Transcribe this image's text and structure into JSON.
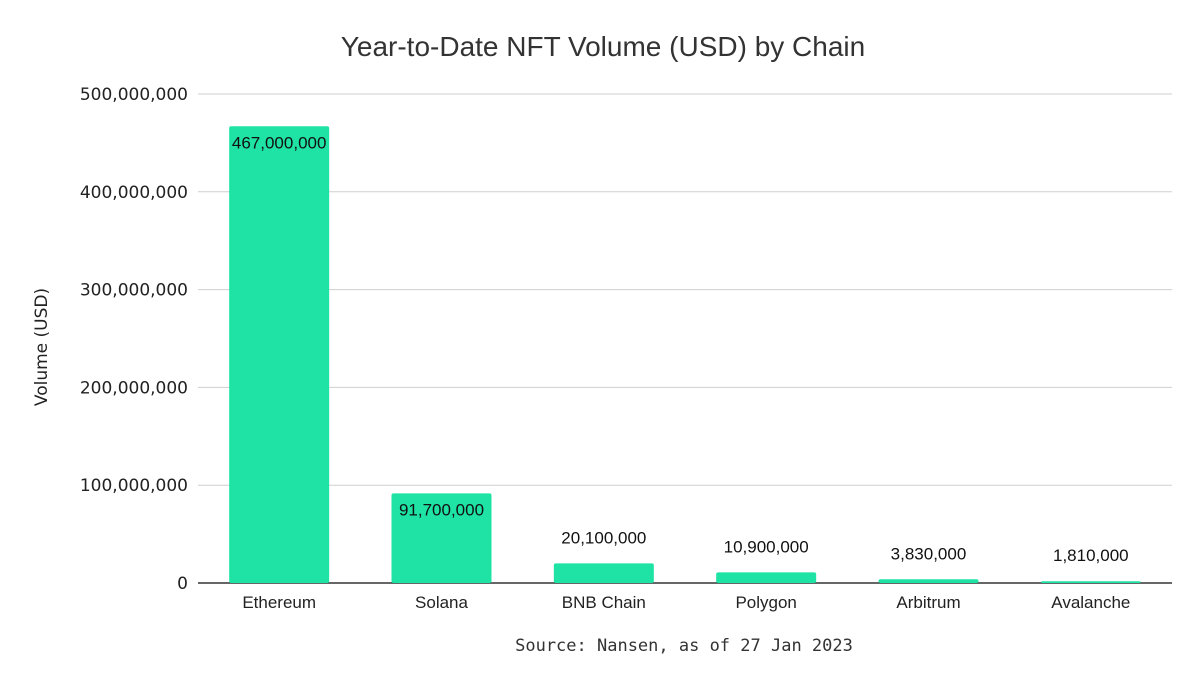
{
  "chart_data": {
    "type": "bar",
    "title": "Year-to-Date NFT Volume (USD) by Chain",
    "xlabel": "",
    "ylabel": "Volume (USD)",
    "categories": [
      "Ethereum",
      "Solana",
      "BNB Chain",
      "Polygon",
      "Arbitrum",
      "Avalanche"
    ],
    "values": [
      467000000,
      91700000,
      20100000,
      10900000,
      3830000,
      1810000
    ],
    "value_labels": [
      "467,000,000",
      "91,700,000",
      "20,100,000",
      "10,900,000",
      "3,830,000",
      "1,810,000"
    ],
    "ylim": [
      0,
      500000000
    ],
    "yticks": [
      0,
      100000000,
      200000000,
      300000000,
      400000000,
      500000000
    ],
    "ytick_labels": [
      "0",
      "100,000,000",
      "200,000,000",
      "300,000,000",
      "400,000,000",
      "500,000,000"
    ],
    "grid": true,
    "legend": "none",
    "bar_color": "#1ee3a4",
    "source_note": "Source: Nansen, as of 27 Jan 2023"
  }
}
